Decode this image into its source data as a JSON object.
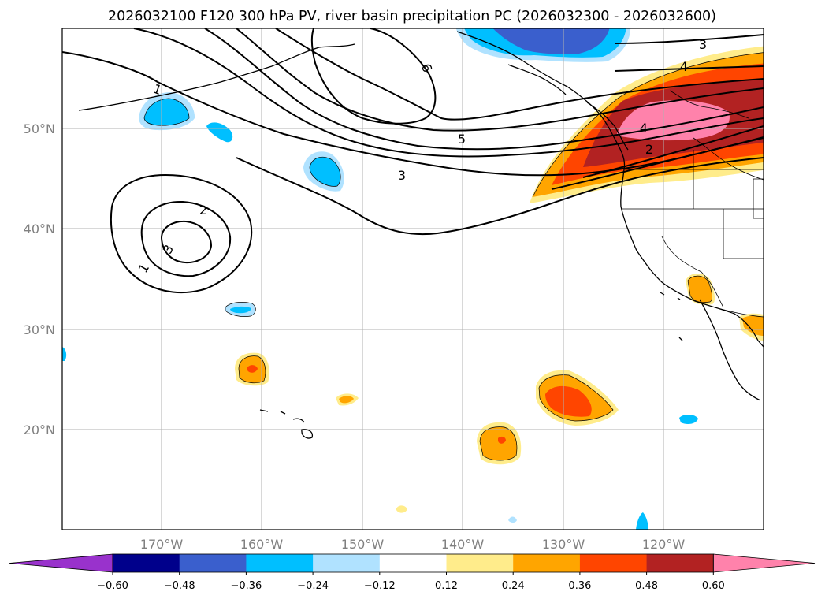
{
  "title": "2026032100 F120 300 hPa PV, river basin precipitation PC (2026032300 - 2026032600)",
  "map": {
    "lon_ticks": [
      "170°W",
      "160°W",
      "150°W",
      "140°W",
      "130°W",
      "120°W"
    ],
    "lat_ticks": [
      "50°N",
      "40°N",
      "30°N",
      "20°N"
    ],
    "grid": true
  },
  "pv_contour_labels": {
    "northern": [
      "1",
      "6",
      "5",
      "3",
      "3",
      "4",
      "4",
      "2"
    ],
    "cyclone": [
      "2",
      "3",
      "1"
    ]
  },
  "colorbar": {
    "tick_labels": [
      "−0.60",
      "−0.48",
      "−0.36",
      "−0.24",
      "−0.12",
      "0.12",
      "0.24",
      "0.36",
      "0.48",
      "0.60"
    ],
    "colors": [
      "#9932cc",
      "#00008b",
      "#3a5fcd",
      "#00bfff",
      "#b0e2ff",
      "#ffffff",
      "#ffec8b",
      "#ffa500",
      "#ff4500",
      "#b22222",
      "#ff82ab"
    ],
    "extend": "both"
  }
}
